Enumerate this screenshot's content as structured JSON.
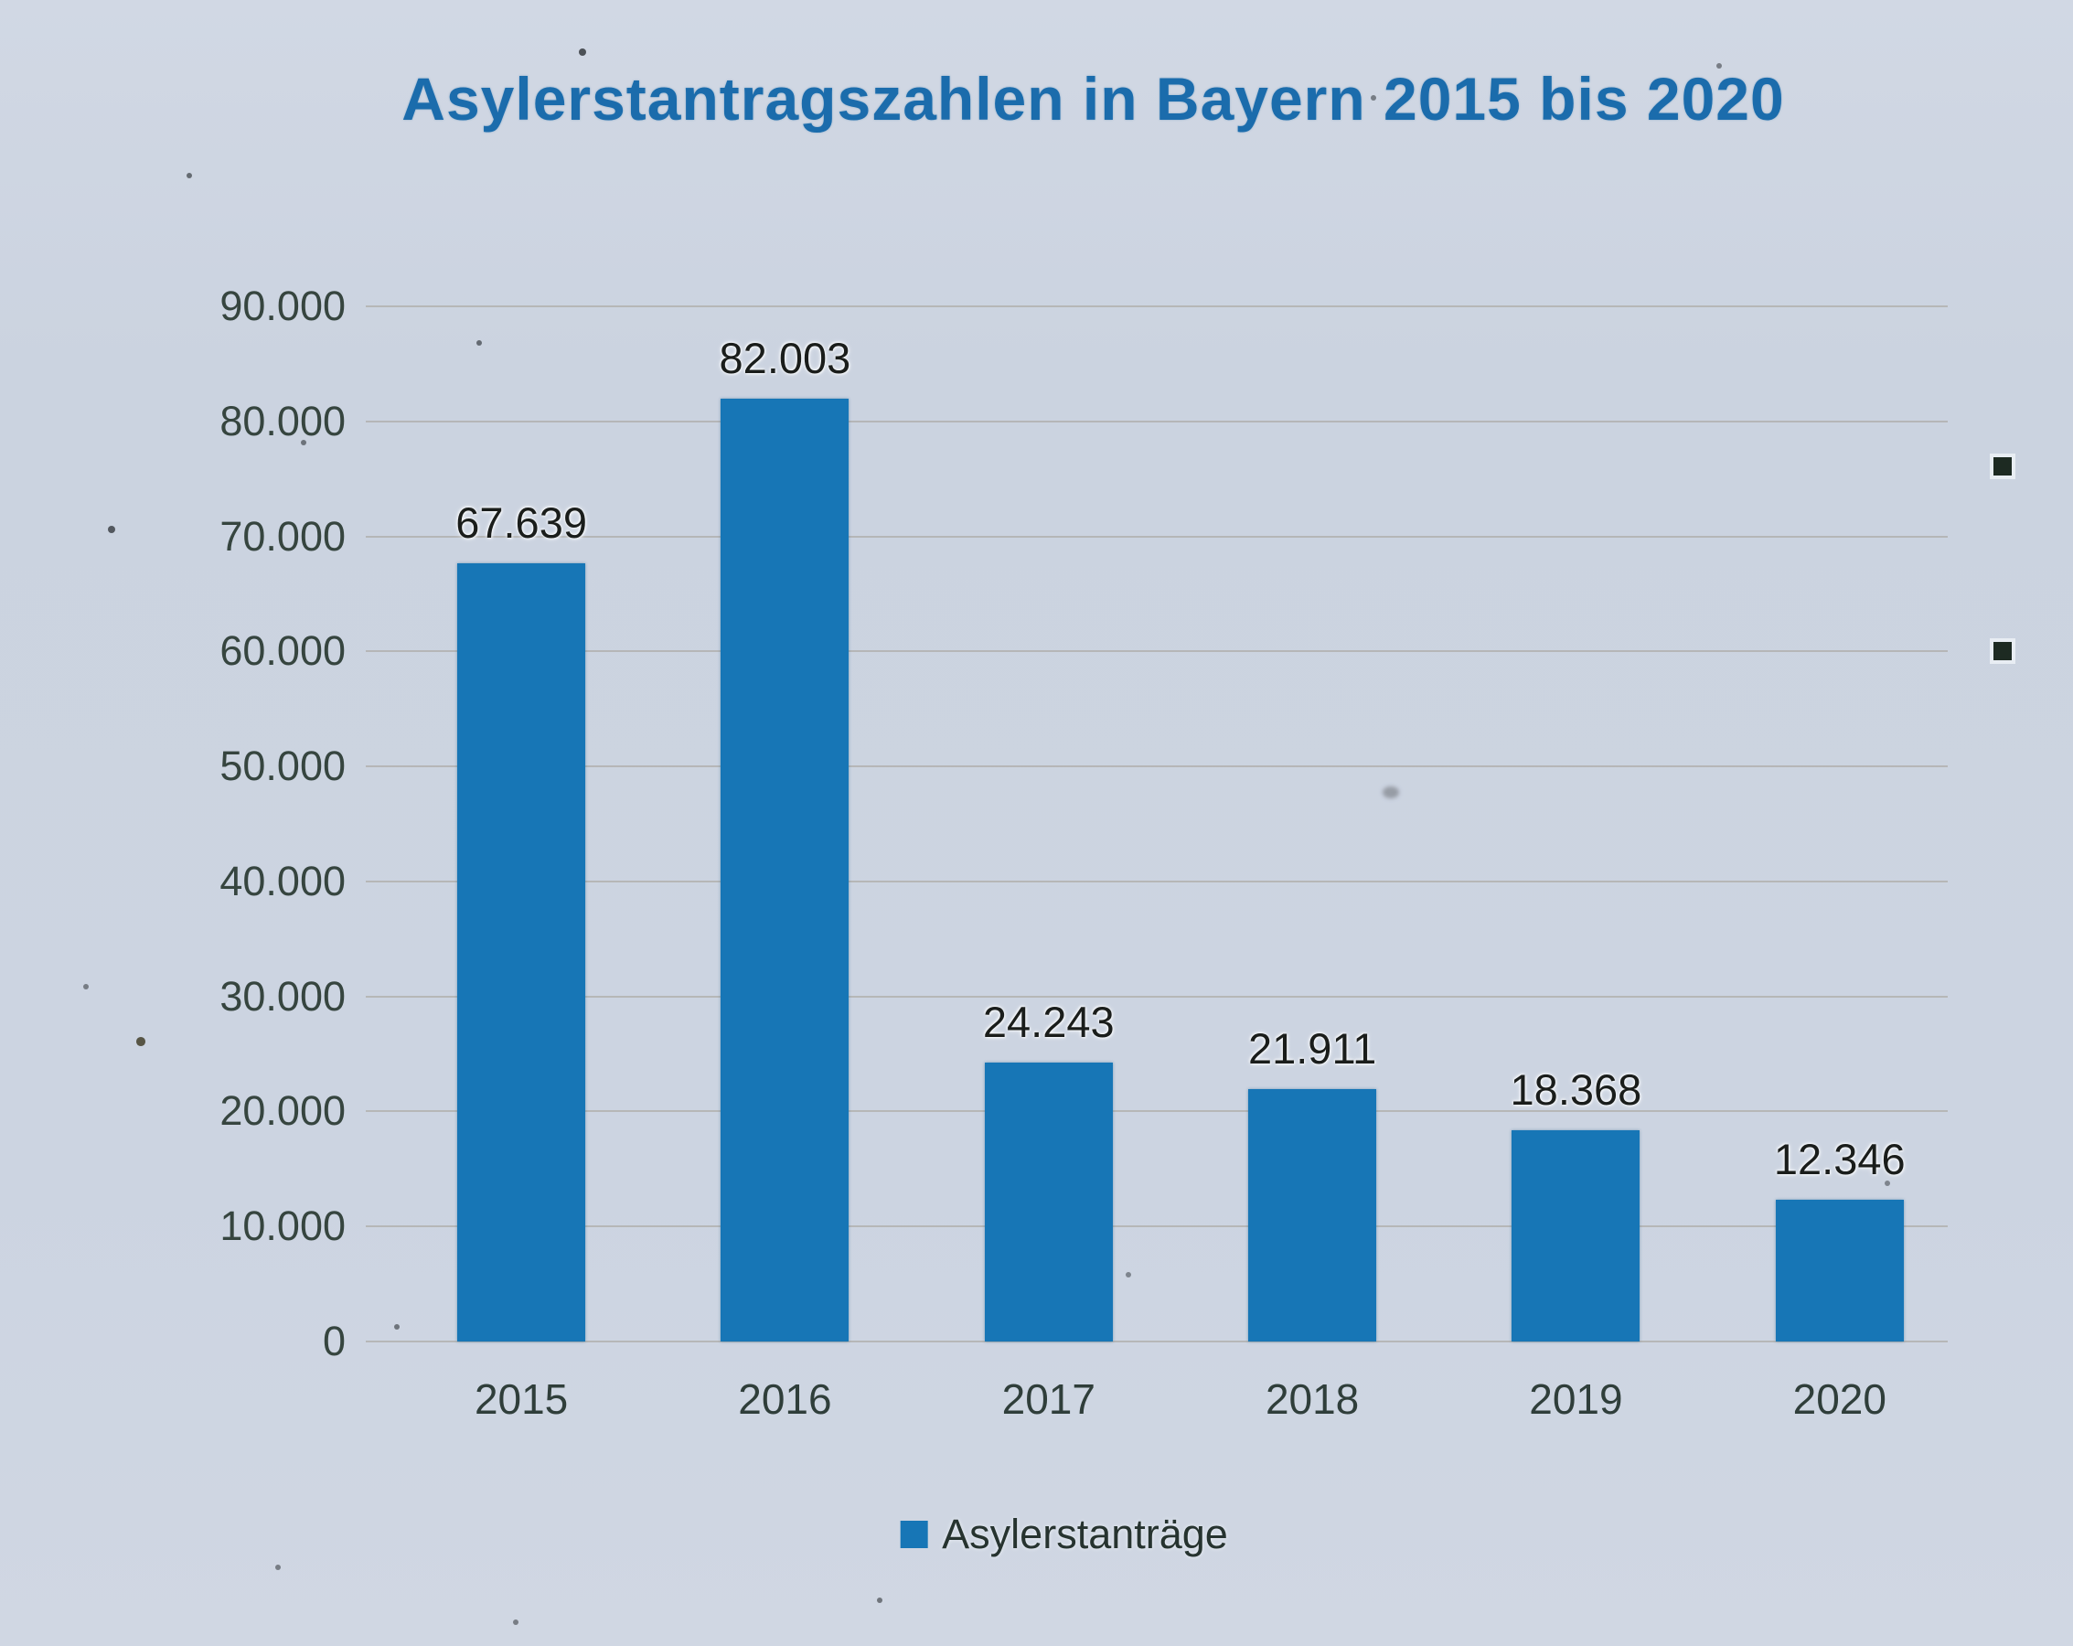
{
  "page": {
    "kind": "scanned printed bar chart"
  },
  "chart_data": {
    "type": "bar",
    "title": "Asylerstantragszahlen in Bayern 2015 bis 2020",
    "categories": [
      "2015",
      "2016",
      "2017",
      "2018",
      "2019",
      "2020"
    ],
    "values": [
      67639,
      82003,
      24243,
      21911,
      18368,
      12346
    ],
    "value_labels": [
      "67.639",
      "82.003",
      "24.243",
      "21.911",
      "18.368",
      "12.346"
    ],
    "y_ticks": [
      90000,
      80000,
      70000,
      60000,
      50000,
      40000,
      30000,
      20000,
      10000,
      0
    ],
    "y_tick_labels": [
      "90.000",
      "80.000",
      "70.000",
      "60.000",
      "50.000",
      "40.000",
      "30.000",
      "20.000",
      "10.000",
      "0"
    ],
    "ylim": [
      0,
      90000
    ],
    "grid": true,
    "bar_color": "#1776b6",
    "legend": {
      "position": "bottom",
      "entries": [
        {
          "label": "Asylerstanträge",
          "color": "#1776b6"
        }
      ]
    },
    "xlabel": "",
    "ylabel": ""
  },
  "colors": {
    "title_blue": "#1b6cac",
    "bar_blue": "#1776b6",
    "paper_background": "#ccd4e1",
    "axis_text": "#36453f",
    "value_text": "#1a1d1b",
    "gridline": "#a49e96"
  }
}
